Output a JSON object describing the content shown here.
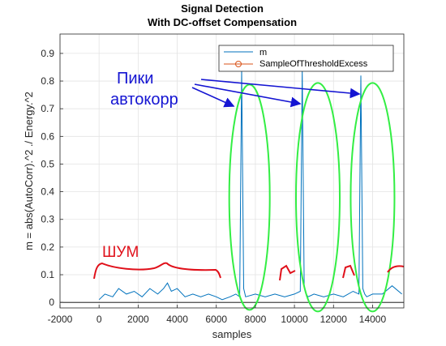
{
  "chart_data": {
    "type": "line",
    "title": [
      "Signal Detection",
      "With DC-offset Compensation"
    ],
    "xlabel": "samples",
    "ylabel": "m = abs(AutoCorr).^2 ./ Energy.^2",
    "xlim": [
      -2000,
      15600
    ],
    "ylim": [
      -0.02,
      0.97
    ],
    "xticks": [
      -2000,
      0,
      2000,
      4000,
      6000,
      8000,
      10000,
      12000,
      14000
    ],
    "yticks": [
      0,
      0.1,
      0.2,
      0.3,
      0.4,
      0.5,
      0.6,
      0.7,
      0.8,
      0.9
    ],
    "grid": true,
    "legend": {
      "location": "top-right",
      "entries": [
        "m",
        "SampleOfThresholdExcess"
      ]
    },
    "series": [
      {
        "name": "m",
        "color": "#0072bd",
        "description_points": {
          "x": [
            0,
            300,
            700,
            1000,
            1400,
            1800,
            2200,
            2600,
            3000,
            3300,
            3500,
            3700,
            4000,
            4400,
            4800,
            5200,
            5600,
            6000,
            6300,
            6700,
            7000,
            7200,
            7300,
            7400,
            7500,
            8000,
            8500,
            9000,
            9500,
            10000,
            10300,
            10400,
            10500,
            10600,
            10700,
            11000,
            11500,
            12000,
            12500,
            13000,
            13300,
            13400,
            13500,
            13600,
            13700,
            14000,
            14500,
            15000,
            15500
          ],
          "y": [
            0.01,
            0.03,
            0.02,
            0.05,
            0.03,
            0.04,
            0.02,
            0.05,
            0.03,
            0.05,
            0.07,
            0.04,
            0.05,
            0.02,
            0.03,
            0.02,
            0.03,
            0.02,
            0.01,
            0.02,
            0.03,
            0.02,
            0.84,
            0.05,
            0.02,
            0.03,
            0.02,
            0.03,
            0.02,
            0.03,
            0.04,
            0.84,
            0.06,
            0.03,
            0.02,
            0.03,
            0.02,
            0.03,
            0.02,
            0.04,
            0.03,
            0.82,
            0.05,
            0.03,
            0.02,
            0.03,
            0.03,
            0.06,
            0.03
          ]
        }
      },
      {
        "name": "SampleOfThresholdExcess",
        "color": "#d95319",
        "marker": "circle"
      }
    ],
    "annotations": [
      {
        "text": "Пики",
        "color": "#1414d2"
      },
      {
        "text": "автокорр",
        "color": "#1414d2"
      },
      {
        "text": "ШУМ",
        "color": "#e0101a"
      }
    ]
  }
}
